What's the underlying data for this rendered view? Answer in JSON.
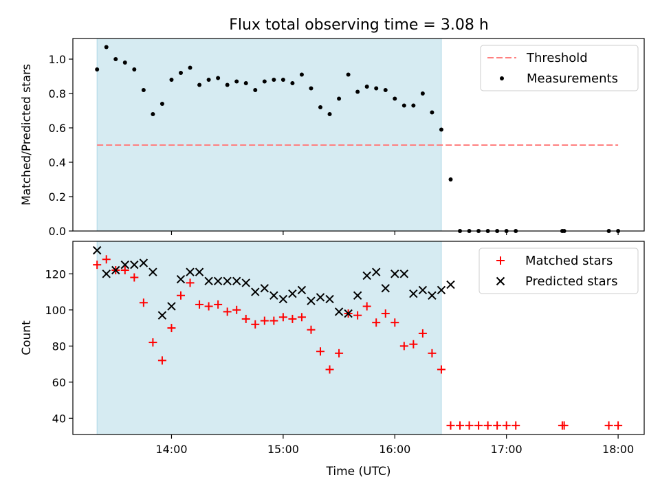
{
  "chart_data": [
    {
      "type": "scatter",
      "title": "Flux total observing time = 3.08 h",
      "xlabel": "",
      "ylabel": "Matched/Predicted stars",
      "xlim": [
        "13:07",
        "18:14"
      ],
      "ylim": [
        0.0,
        1.12
      ],
      "yticks": [
        0.0,
        0.2,
        0.4,
        0.6,
        0.8,
        1.0
      ],
      "ytick_labels": [
        "0.0",
        "0.2",
        "0.4",
        "0.6",
        "0.8",
        "1.0"
      ],
      "xticks": [
        "14:00",
        "15:00",
        "16:00",
        "17:00",
        "18:00"
      ],
      "xtick_labels_shown": false,
      "shaded_span": {
        "start": "13:20",
        "end": "16:25",
        "color": "#add8e6"
      },
      "threshold": {
        "name": "Threshold",
        "value": 0.5,
        "start": "13:20",
        "end": "18:00",
        "color": "#ff7f7f",
        "style": "dashed"
      },
      "series": [
        {
          "name": "Measurements",
          "color": "#000000",
          "marker": "dot",
          "x": [
            "13:20",
            "13:25",
            "13:30",
            "13:35",
            "13:40",
            "13:45",
            "13:50",
            "13:55",
            "14:00",
            "14:05",
            "14:10",
            "14:15",
            "14:20",
            "14:25",
            "14:30",
            "14:35",
            "14:40",
            "14:45",
            "14:50",
            "14:55",
            "15:00",
            "15:05",
            "15:10",
            "15:15",
            "15:20",
            "15:25",
            "15:30",
            "15:35",
            "15:40",
            "15:45",
            "15:50",
            "15:55",
            "16:00",
            "16:05",
            "16:10",
            "16:15",
            "16:20",
            "16:25",
            "16:30",
            "16:35",
            "16:40",
            "16:45",
            "16:50",
            "16:55",
            "17:00",
            "17:05",
            "17:30",
            "17:31",
            "17:55",
            "18:00"
          ],
          "y": [
            0.94,
            1.07,
            1.0,
            0.98,
            0.94,
            0.82,
            0.68,
            0.74,
            0.88,
            0.92,
            0.95,
            0.85,
            0.88,
            0.89,
            0.85,
            0.87,
            0.86,
            0.82,
            0.87,
            0.88,
            0.88,
            0.86,
            0.91,
            0.83,
            0.72,
            0.68,
            0.77,
            0.91,
            0.81,
            0.84,
            0.83,
            0.82,
            0.77,
            0.73,
            0.73,
            0.8,
            0.69,
            0.59,
            0.3,
            0.0,
            0.0,
            0.0,
            0.0,
            0.0,
            0.0,
            0.0,
            0.0,
            0.0,
            0.0,
            0.0
          ]
        }
      ],
      "legend": {
        "placement": "top-right",
        "entries": [
          "Threshold",
          "Measurements"
        ]
      }
    },
    {
      "type": "scatter",
      "title": "",
      "xlabel": "Time (UTC)",
      "ylabel": "Count",
      "xlim": [
        "13:07",
        "18:14"
      ],
      "ylim": [
        31,
        138
      ],
      "yticks": [
        40,
        60,
        80,
        100,
        120
      ],
      "ytick_labels": [
        "40",
        "60",
        "80",
        "100",
        "120"
      ],
      "xticks": [
        "14:00",
        "15:00",
        "16:00",
        "17:00",
        "18:00"
      ],
      "xtick_labels": [
        "14:00",
        "15:00",
        "16:00",
        "17:00",
        "18:00"
      ],
      "shaded_span": {
        "start": "13:20",
        "end": "16:25",
        "color": "#add8e6"
      },
      "series": [
        {
          "name": "Matched stars",
          "color": "#ff0000",
          "marker": "plus",
          "x": [
            "13:20",
            "13:25",
            "13:30",
            "13:35",
            "13:40",
            "13:45",
            "13:50",
            "13:55",
            "14:00",
            "14:05",
            "14:10",
            "14:15",
            "14:20",
            "14:25",
            "14:30",
            "14:35",
            "14:40",
            "14:45",
            "14:50",
            "14:55",
            "15:00",
            "15:05",
            "15:10",
            "15:15",
            "15:20",
            "15:25",
            "15:30",
            "15:35",
            "15:40",
            "15:45",
            "15:50",
            "15:55",
            "16:00",
            "16:05",
            "16:10",
            "16:15",
            "16:20",
            "16:25",
            "16:30",
            "16:35",
            "16:40",
            "16:45",
            "16:50",
            "16:55",
            "17:00",
            "17:05",
            "17:30",
            "17:31",
            "17:55",
            "18:00"
          ],
          "y": [
            125,
            128,
            122,
            122,
            118,
            104,
            82,
            72,
            90,
            108,
            115,
            103,
            102,
            103,
            99,
            100,
            95,
            92,
            94,
            94,
            96,
            95,
            96,
            89,
            77,
            67,
            76,
            98,
            97,
            102,
            93,
            98,
            93,
            80,
            81,
            87,
            76,
            67,
            36,
            36,
            36,
            36,
            36,
            36,
            36,
            36,
            36,
            36,
            36,
            36
          ]
        },
        {
          "name": "Predicted stars",
          "color": "#000000",
          "marker": "x",
          "x": [
            "13:20",
            "13:25",
            "13:30",
            "13:35",
            "13:40",
            "13:45",
            "13:50",
            "13:55",
            "14:00",
            "14:05",
            "14:10",
            "14:15",
            "14:20",
            "14:25",
            "14:30",
            "14:35",
            "14:40",
            "14:45",
            "14:50",
            "14:55",
            "15:00",
            "15:05",
            "15:10",
            "15:15",
            "15:20",
            "15:25",
            "15:30",
            "15:35",
            "15:40",
            "15:45",
            "15:50",
            "15:55",
            "16:00",
            "16:05",
            "16:10",
            "16:15",
            "16:20",
            "16:25",
            "16:30"
          ],
          "y": [
            133,
            120,
            122,
            125,
            125,
            126,
            121,
            97,
            102,
            117,
            121,
            121,
            116,
            116,
            116,
            116,
            115,
            110,
            112,
            108,
            106,
            109,
            111,
            105,
            107,
            106,
            99,
            98,
            108,
            119,
            121,
            112,
            120,
            120,
            109,
            111,
            108,
            111,
            114
          ]
        }
      ],
      "legend": {
        "placement": "top-right",
        "entries": [
          "Matched stars",
          "Predicted stars"
        ]
      }
    }
  ]
}
